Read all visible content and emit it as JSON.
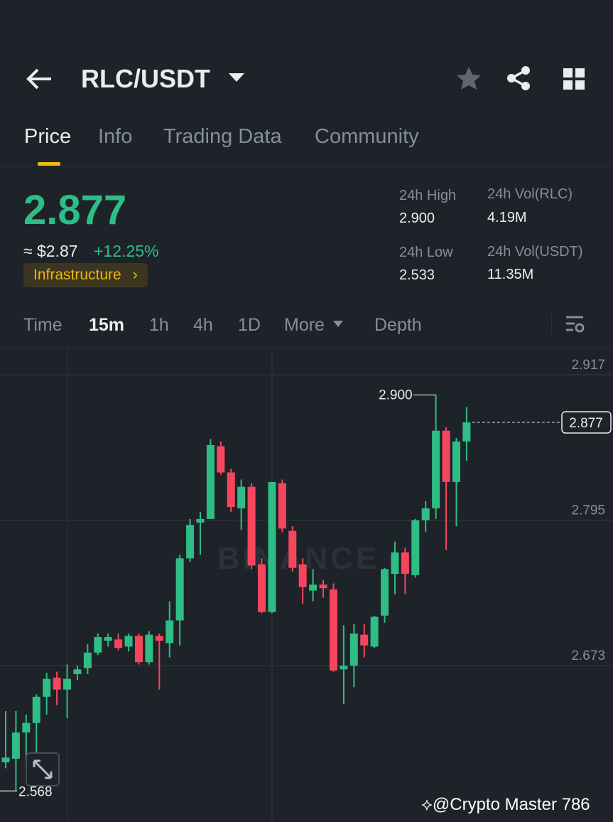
{
  "header": {
    "pair": "RLC/USDT"
  },
  "tabs": [
    "Price",
    "Info",
    "Trading Data",
    "Community"
  ],
  "price": {
    "last": "2.877",
    "approx": "≈ $2.87",
    "change": "+12.25%",
    "tag": "Infrastructure"
  },
  "stats": [
    {
      "label": "24h High",
      "value": "2.900"
    },
    {
      "label": "24h Vol(RLC)",
      "value": "4.19M"
    },
    {
      "label": "24h Low",
      "value": "2.533"
    },
    {
      "label": "24h Vol(USDT)",
      "value": "11.35M"
    }
  ],
  "intervals": [
    "Time",
    "15m",
    "1h",
    "4h",
    "1D",
    "More",
    "Depth"
  ],
  "chart_data": {
    "type": "candlestick",
    "open": [
      2.592,
      2.595,
      2.617,
      2.625,
      2.647,
      2.663,
      2.653,
      2.666,
      2.671,
      2.684,
      2.694,
      2.695,
      2.689,
      2.698,
      2.676,
      2.698,
      2.692,
      2.711,
      2.763,
      2.793,
      2.796,
      2.857,
      2.835,
      2.805,
      2.823,
      2.758,
      2.718,
      2.826,
      2.786,
      2.758,
      2.736,
      2.741,
      2.737,
      2.67,
      2.673,
      2.699,
      2.689,
      2.715,
      2.75,
      2.768,
      2.749,
      2.795,
      2.805,
      2.87,
      2.827,
      2.861
    ],
    "high": [
      2.635,
      2.635,
      2.632,
      2.649,
      2.667,
      2.668,
      2.674,
      2.673,
      2.691,
      2.7,
      2.7,
      2.7,
      2.7,
      2.7,
      2.702,
      2.7,
      2.727,
      2.766,
      2.796,
      2.802,
      2.863,
      2.861,
      2.838,
      2.829,
      2.826,
      2.763,
      2.827,
      2.829,
      2.79,
      2.763,
      2.754,
      2.745,
      2.742,
      2.707,
      2.708,
      2.708,
      2.715,
      2.755,
      2.777,
      2.772,
      2.796,
      2.811,
      2.9,
      2.873,
      2.864,
      2.89
    ],
    "low": [
      2.587,
      2.568,
      2.591,
      2.6,
      2.632,
      2.64,
      2.629,
      2.661,
      2.666,
      2.682,
      2.689,
      2.686,
      2.685,
      2.674,
      2.674,
      2.653,
      2.68,
      2.69,
      2.76,
      2.766,
      2.796,
      2.833,
      2.802,
      2.787,
      2.754,
      2.717,
      2.717,
      2.785,
      2.752,
      2.725,
      2.727,
      2.73,
      2.668,
      2.641,
      2.655,
      2.68,
      2.688,
      2.709,
      2.733,
      2.733,
      2.747,
      2.785,
      2.796,
      2.77,
      2.79,
      2.845
    ],
    "close": [
      2.596,
      2.617,
      2.625,
      2.647,
      2.662,
      2.653,
      2.662,
      2.67,
      2.684,
      2.697,
      2.697,
      2.688,
      2.698,
      2.676,
      2.699,
      2.694,
      2.711,
      2.763,
      2.791,
      2.796,
      2.858,
      2.835,
      2.806,
      2.823,
      2.757,
      2.718,
      2.827,
      2.788,
      2.755,
      2.739,
      2.741,
      2.738,
      2.669,
      2.673,
      2.7,
      2.69,
      2.714,
      2.754,
      2.768,
      2.75,
      2.795,
      2.805,
      2.87,
      2.827,
      2.861,
      2.877
    ],
    "up_color": "#2ebd85",
    "down_color": "#f6465d",
    "ylim": [
      2.542,
      2.939
    ],
    "yticks": [
      2.917,
      2.795,
      2.673
    ],
    "max_marker": {
      "value": 2.9,
      "label": "2.900"
    },
    "min_marker": {
      "value": 2.568,
      "label": "2.568"
    },
    "last_marker": {
      "value": 2.877,
      "label": "2.877"
    },
    "grid": true,
    "watermark": "BINANCE"
  },
  "footer": {
    "credit": "@Crypto Master 786"
  }
}
